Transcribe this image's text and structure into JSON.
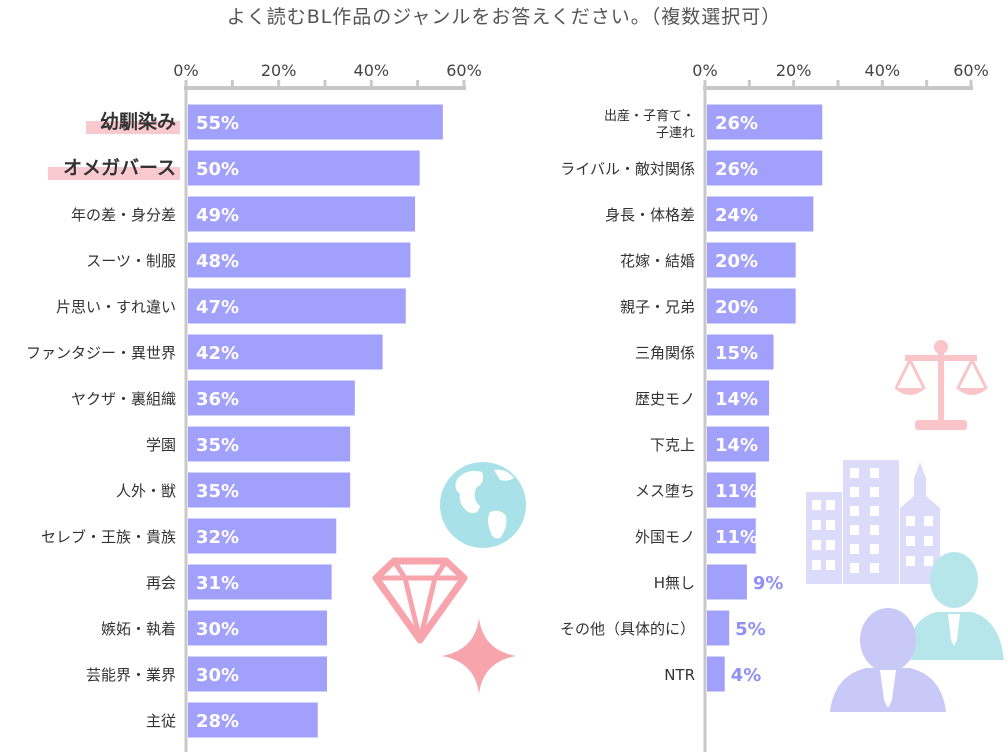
{
  "colors": {
    "bar": "#a1a0fa",
    "highlight": "#f8c9cf",
    "axis": "#c8c8c8",
    "value_outside": "#8f8ff5",
    "globe": "#a8e2e8",
    "diamond": "#f7a4ad",
    "scale": "#f9c5c9",
    "building": "#dcdcfa",
    "person_front": "#c9c9f7",
    "person_back": "#b6e6ea"
  },
  "icons": [
    "globe-icon",
    "diamond-icon",
    "sparkle-icon",
    "scales-icon",
    "buildings-icon",
    "businessman-icon",
    "businessman-back-icon"
  ],
  "chart_data": [
    {
      "type": "bar",
      "orientation": "horizontal",
      "title": "よく読むBL作品のジャンルをお答えください。（複数選択可）",
      "xlim": [
        0,
        60
      ],
      "ticks": [
        "0%",
        "20%",
        "40%",
        "60%"
      ],
      "highlighted": [
        "幼馴染み",
        "オメガバース"
      ],
      "categories": [
        "幼馴染み",
        "オメガバース",
        "年の差・身分差",
        "スーツ・制服",
        "片思い・すれ違い",
        "ファンタジー・異世界",
        "ヤクザ・裏組織",
        "学園",
        "人外・獣",
        "セレブ・王族・貴族",
        "再会",
        "嫉妬・執着",
        "芸能界・業界",
        "主従"
      ],
      "values": [
        55,
        50,
        49,
        48,
        47,
        42,
        36,
        35,
        35,
        32,
        31,
        30,
        30,
        28
      ],
      "labels": [
        "55%",
        "50%",
        "49%",
        "48%",
        "47%",
        "42%",
        "36%",
        "35%",
        "35%",
        "32%",
        "31%",
        "30%",
        "30%",
        "28%"
      ]
    },
    {
      "type": "bar",
      "orientation": "horizontal",
      "xlim": [
        0,
        60
      ],
      "ticks": [
        "0%",
        "20%",
        "40%",
        "60%"
      ],
      "categories": [
        "出産・子育て・\n子連れ",
        "ライバル・敵対関係",
        "身長・体格差",
        "花嫁・結婚",
        "親子・兄弟",
        "三角関係",
        "歴史モノ",
        "下克上",
        "メス堕ち",
        "外国モノ",
        "H無し",
        "その他（具体的に）",
        "NTR"
      ],
      "values": [
        26,
        26,
        24,
        20,
        20,
        15,
        14,
        14,
        11,
        11,
        9,
        5,
        4
      ],
      "labels": [
        "26%",
        "26%",
        "24%",
        "20%",
        "20%",
        "15%",
        "14%",
        "14%",
        "11%",
        "11%",
        "9%",
        "5%",
        "4%"
      ]
    }
  ]
}
